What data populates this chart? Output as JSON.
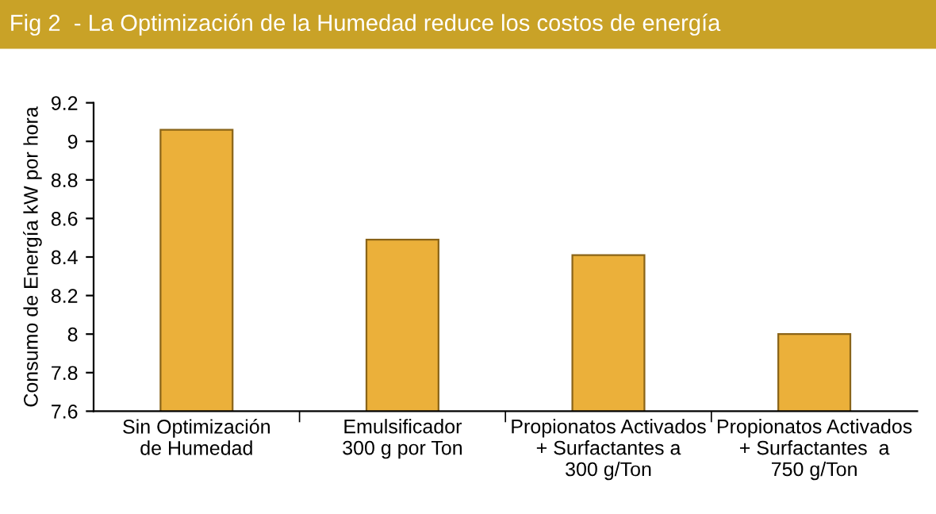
{
  "chart_data": {
    "type": "bar",
    "title": "Fig 2  - La Optimización de la Humedad reduce los costos de energía",
    "ylabel": "Consumo de Energía kW por hora",
    "categories": [
      "Sin Optimización\nde Humedad",
      "Emulsificador\n300 g por Ton",
      "Propionatos Activados\n+ Surfactantes a\n300 g/Ton",
      "Propionatos Activados\n+ Surfactantes  a\n750 g/Ton"
    ],
    "values": [
      9.06,
      8.49,
      8.41,
      8.0
    ],
    "color": "#ebb03a",
    "ylim": [
      7.6,
      9.2
    ],
    "yticks": [
      7.6,
      7.8,
      8,
      8.2,
      8.4,
      8.6,
      8.8,
      9,
      9.2
    ],
    "grid": false,
    "legend": false
  }
}
